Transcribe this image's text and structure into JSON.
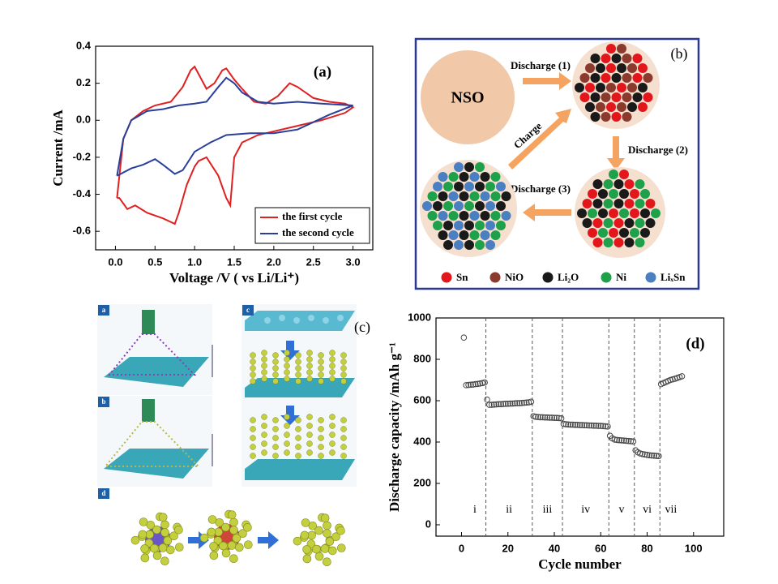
{
  "chart_data": [
    {
      "type": "line",
      "label": "(a)",
      "xlabel": "Voltage /V ( vs Li/Li⁺)",
      "ylabel": "Current /mA",
      "xlim": [
        -0.25,
        3.25
      ],
      "ylim": [
        -0.7,
        0.4
      ],
      "xticks": [
        {
          "value": 0,
          "label": "0.0"
        },
        0.5,
        {
          "value": 1,
          "label": "1.0"
        },
        1.5,
        {
          "value": 2,
          "label": "2.0"
        },
        2.5,
        {
          "value": 3,
          "label": "3.0"
        }
      ],
      "yticks": [
        0.4,
        0.2,
        {
          "value": 0,
          "label": "0.0"
        },
        -0.2,
        -0.4,
        -0.6
      ],
      "legend": "lower right",
      "series": [
        {
          "name": "the first cycle",
          "color": "#e02020",
          "x": [
            0.02,
            0.05,
            0.1,
            0.2,
            0.35,
            0.5,
            0.7,
            0.85,
            0.95,
            1.0,
            1.05,
            1.15,
            1.25,
            1.35,
            1.4,
            1.5,
            1.6,
            1.75,
            1.9,
            2.05,
            2.2,
            2.3,
            2.5,
            2.7,
            2.9,
            3.0,
            2.9,
            2.6,
            2.3,
            2.0,
            1.8,
            1.6,
            1.5,
            1.45,
            1.4,
            1.3,
            1.15,
            1.05,
            1.0,
            0.9,
            0.8,
            0.75,
            0.6,
            0.4,
            0.25,
            0.15,
            0.05,
            0.02
          ],
          "values": [
            -0.42,
            -0.3,
            -0.1,
            0.0,
            0.05,
            0.08,
            0.1,
            0.18,
            0.27,
            0.29,
            0.25,
            0.17,
            0.2,
            0.27,
            0.28,
            0.22,
            0.17,
            0.1,
            0.09,
            0.13,
            0.2,
            0.18,
            0.12,
            0.1,
            0.09,
            0.07,
            0.04,
            0.0,
            -0.03,
            -0.06,
            -0.08,
            -0.12,
            -0.2,
            -0.46,
            -0.42,
            -0.3,
            -0.2,
            -0.22,
            -0.25,
            -0.35,
            -0.5,
            -0.56,
            -0.53,
            -0.5,
            -0.46,
            -0.48,
            -0.42,
            -0.42
          ]
        },
        {
          "name": "the second cycle",
          "color": "#2a3f9a",
          "x": [
            0.02,
            0.1,
            0.2,
            0.4,
            0.6,
            0.8,
            1.0,
            1.15,
            1.3,
            1.4,
            1.5,
            1.6,
            1.8,
            2.0,
            2.3,
            2.6,
            3.0,
            2.7,
            2.3,
            2.0,
            1.7,
            1.4,
            1.2,
            1.0,
            0.85,
            0.75,
            0.6,
            0.5,
            0.35,
            0.2,
            0.02
          ],
          "values": [
            -0.3,
            -0.1,
            0.0,
            0.05,
            0.06,
            0.08,
            0.09,
            0.1,
            0.18,
            0.23,
            0.2,
            0.15,
            0.1,
            0.09,
            0.1,
            0.09,
            0.08,
            0.03,
            -0.05,
            -0.07,
            -0.07,
            -0.08,
            -0.12,
            -0.17,
            -0.27,
            -0.29,
            -0.24,
            -0.21,
            -0.24,
            -0.26,
            -0.3
          ]
        }
      ]
    },
    {
      "type": "scatter",
      "label": "(d)",
      "xlabel": "Cycle number",
      "ylabel": "Discharge capacity /mAh g⁻¹",
      "xlim": [
        -11,
        113
      ],
      "ylim": [
        -55,
        1000
      ],
      "xticks": [
        0,
        20,
        40,
        60,
        80,
        100
      ],
      "yticks": [
        0,
        200,
        400,
        600,
        800,
        1000
      ],
      "color": "#444444",
      "x": [
        1,
        2,
        3,
        4,
        5,
        6,
        7,
        8,
        9,
        10,
        11,
        12,
        13,
        14,
        15,
        16,
        17,
        18,
        19,
        20,
        21,
        22,
        23,
        24,
        25,
        26,
        27,
        28,
        29,
        30,
        31,
        32,
        33,
        34,
        35,
        36,
        37,
        38,
        39,
        40,
        41,
        42,
        43,
        44,
        45,
        46,
        47,
        48,
        49,
        50,
        51,
        52,
        53,
        54,
        55,
        56,
        57,
        58,
        59,
        60,
        61,
        62,
        63,
        64,
        65,
        66,
        67,
        68,
        69,
        70,
        71,
        72,
        73,
        74,
        75,
        76,
        77,
        78,
        79,
        80,
        81,
        82,
        83,
        84,
        85,
        86,
        87,
        88,
        89,
        90,
        91,
        92,
        93,
        94,
        95
      ],
      "values": [
        905,
        675,
        676,
        677,
        678,
        680,
        681,
        683,
        685,
        688,
        605,
        580,
        580,
        581,
        582,
        583,
        583,
        584,
        585,
        585,
        586,
        586,
        587,
        588,
        588,
        589,
        590,
        591,
        592,
        595,
        525,
        522,
        521,
        520,
        520,
        519,
        519,
        518,
        518,
        517,
        517,
        516,
        515,
        488,
        486,
        485,
        484,
        484,
        483,
        483,
        482,
        482,
        481,
        481,
        480,
        480,
        479,
        479,
        478,
        478,
        477,
        476,
        475,
        430,
        418,
        412,
        410,
        409,
        408,
        407,
        406,
        405,
        404,
        403,
        360,
        350,
        345,
        342,
        340,
        338,
        336,
        335,
        334,
        333,
        332,
        680,
        685,
        690,
        695,
        700,
        703,
        706,
        710,
        714,
        718
      ],
      "dividers": [
        10.5,
        30.5,
        43.5,
        63.5,
        74.5,
        85.5
      ],
      "region_labels": [
        "i",
        "ii",
        "iii",
        "iv",
        "v",
        "vi",
        "vii"
      ]
    }
  ],
  "diagram_b": {
    "label": "(b)",
    "nso": "NSO",
    "steps": [
      "Discharge (1)",
      "Discharge (2)",
      "Discharge (3)",
      "Charge"
    ],
    "legend": [
      {
        "name": "Sn",
        "color": "#e3161b"
      },
      {
        "name": "NiO",
        "color": "#8b3a2e"
      },
      {
        "name": "Li₂O",
        "color": "#1a1a1a"
      },
      {
        "name": "Ni",
        "color": "#1fa04a"
      },
      {
        "name": "LiₓSn",
        "color": "#4a7fc1"
      }
    ]
  },
  "diagram_c": {
    "label": "(c)",
    "steps": [
      "a",
      "b",
      "c",
      "d"
    ]
  }
}
